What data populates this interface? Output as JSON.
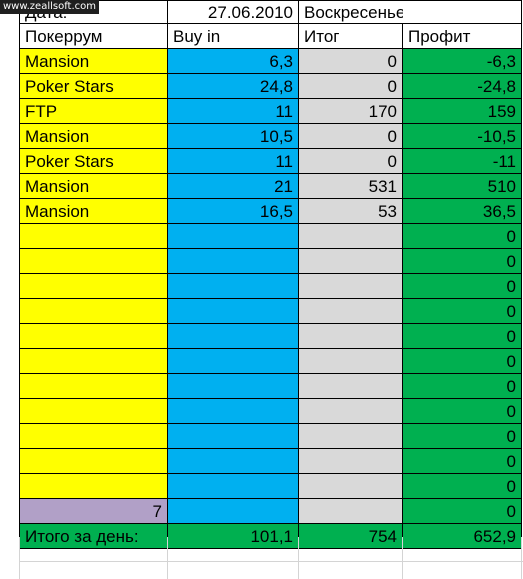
{
  "watermark": "www.zeallsoft.com",
  "header": {
    "date_label": "Дата:",
    "date_value": "27.06.2010",
    "weekday": "Воскресенье"
  },
  "columns": {
    "room": "Покеррум",
    "buyin": "Buy in",
    "result": "Итог",
    "profit": "Профит"
  },
  "rows": [
    {
      "room": "Mansion",
      "buyin": "6,3",
      "result": "0",
      "profit": "-6,3"
    },
    {
      "room": "Poker Stars",
      "buyin": "24,8",
      "result": "0",
      "profit": "-24,8"
    },
    {
      "room": "FTP",
      "buyin": "11",
      "result": "170",
      "profit": "159"
    },
    {
      "room": "Mansion",
      "buyin": "10,5",
      "result": "0",
      "profit": "-10,5"
    },
    {
      "room": "Poker Stars",
      "buyin": "11",
      "result": "0",
      "profit": "-11"
    },
    {
      "room": "Mansion",
      "buyin": "21",
      "result": "531",
      "profit": "510"
    },
    {
      "room": "Mansion",
      "buyin": "16,5",
      "result": "53",
      "profit": "36,5"
    },
    {
      "room": "",
      "buyin": "",
      "result": "",
      "profit": "0"
    },
    {
      "room": "",
      "buyin": "",
      "result": "",
      "profit": "0"
    },
    {
      "room": "",
      "buyin": "",
      "result": "",
      "profit": "0"
    },
    {
      "room": "",
      "buyin": "",
      "result": "",
      "profit": "0"
    },
    {
      "room": "",
      "buyin": "",
      "result": "",
      "profit": "0"
    },
    {
      "room": "",
      "buyin": "",
      "result": "",
      "profit": "0"
    },
    {
      "room": "",
      "buyin": "",
      "result": "",
      "profit": "0"
    },
    {
      "room": "",
      "buyin": "",
      "result": "",
      "profit": "0"
    },
    {
      "room": "",
      "buyin": "",
      "result": "",
      "profit": "0"
    },
    {
      "room": "",
      "buyin": "",
      "result": "",
      "profit": "0"
    },
    {
      "room": "",
      "buyin": "",
      "result": "",
      "profit": "0"
    }
  ],
  "count_row": {
    "count": "7",
    "profit": "0"
  },
  "totals": {
    "label": "Итого за день:",
    "buyin": "101,1",
    "result": "754",
    "profit": "652,9"
  },
  "colors": {
    "room": "#ffff00",
    "buyin": "#00b0f0",
    "result": "#d9d9d9",
    "profit": "#00b050",
    "count": "#b1a0c7",
    "totals": "#00b050"
  }
}
